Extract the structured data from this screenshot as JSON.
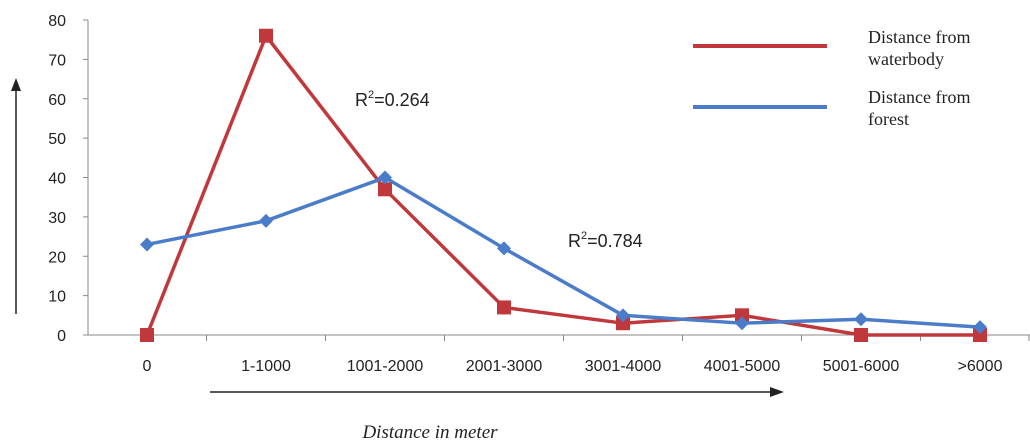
{
  "chart_data": {
    "type": "line",
    "categories": [
      "0",
      "1-1000",
      "1001-2000",
      "2001-3000",
      "3001-4000",
      "4001-5000",
      "5001-6000",
      ">6000"
    ],
    "series": [
      {
        "name": "Distance from waterbody",
        "values": [
          0,
          76,
          37,
          7,
          3,
          5,
          0,
          0
        ],
        "color": "#c0383b",
        "marker": "square"
      },
      {
        "name": "Distance from forest",
        "values": [
          23,
          29,
          40,
          22,
          5,
          3,
          4,
          2
        ],
        "color": "#4a7cc9",
        "marker": "diamond"
      }
    ],
    "legend": {
      "placement": "top-right",
      "lines": [
        [
          "Distance from",
          "waterbody"
        ],
        [
          "Distance from",
          "forest"
        ]
      ]
    },
    "annotations": [
      {
        "base": "R",
        "sup": "2",
        "text": "=0.264"
      },
      {
        "base": "R",
        "sup": "2",
        "text": "=0.784"
      }
    ],
    "xlabel": "Distance in meter",
    "ylabel": "",
    "ylim": [
      0,
      80
    ],
    "yticks": [
      0,
      10,
      20,
      30,
      40,
      50,
      60,
      70,
      80
    ],
    "grid": false
  }
}
